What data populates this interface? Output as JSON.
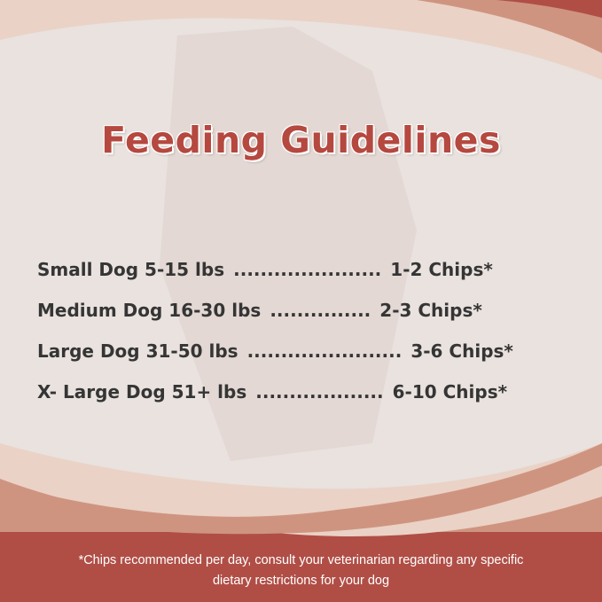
{
  "title": "Feeding Guidelines",
  "rows": [
    {
      "size": "Small Dog 5-15 lbs",
      "dots": "......................",
      "amount": "1-2 Chips*"
    },
    {
      "size": "Medium Dog 16-30 lbs",
      "dots": "...............",
      "amount": "2-3 Chips*"
    },
    {
      "size": "Large Dog 31-50 lbs",
      "dots": ".......................",
      "amount": "3-6 Chips*"
    },
    {
      "size": "X- Large Dog 51+ lbs",
      "dots": "...................",
      "amount": "6-10 Chips*"
    }
  ],
  "footnote": {
    "line1": "*Chips recommended per day, consult your veterinarian regarding any specific",
    "line2": "dietary restrictions for your dog"
  },
  "colors": {
    "brand_red": "#b04e46",
    "title_red": "#b5483f",
    "band_peach": "#cf9480",
    "band_light": "#ead2c6",
    "text_dark": "#353535"
  }
}
